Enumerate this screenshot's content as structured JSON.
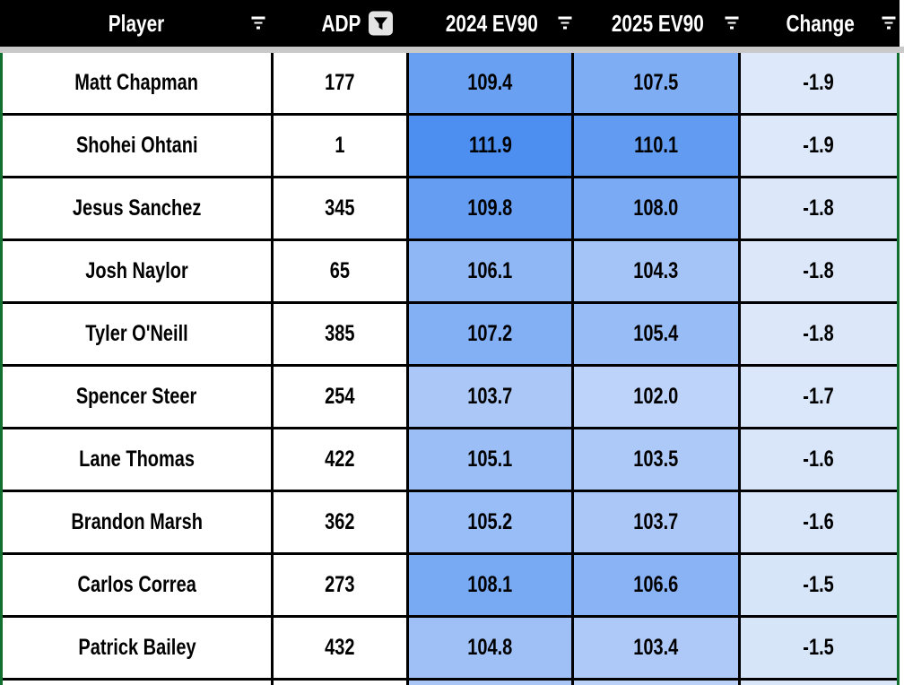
{
  "header": {
    "bg": "#000000",
    "text_color": "#ffffff",
    "columns": [
      {
        "label": "Player",
        "filter_icon": "filter-lines"
      },
      {
        "label": "ADP",
        "filter_icon": "funnel-active"
      },
      {
        "label": "2024 EV90",
        "filter_icon": "filter-lines"
      },
      {
        "label": "2025 EV90",
        "filter_icon": "filter-lines"
      },
      {
        "label": "Change",
        "filter_icon": "filter-lines"
      }
    ]
  },
  "colors": {
    "frozen_border_green": "#11702f",
    "header_shadow_gray": "#c9c9c9",
    "grid_line": "#000000",
    "funnel_button_bg": "#e4e4e4",
    "ev_scale_dark": "#4d8ff0",
    "ev_scale_light": "#bed3f9",
    "change_tint": "#dce8fa"
  },
  "chart_data": {
    "type": "table",
    "title": "",
    "columns": [
      "Player",
      "ADP",
      "2024 EV90",
      "2025 EV90",
      "Change"
    ],
    "rows": [
      {
        "player": "Matt Chapman",
        "adp": "177",
        "ev2024": "109.4",
        "ev2025": "107.5",
        "change": "-1.9",
        "c2024": "#6aa0f2",
        "c2025": "#7fadf4",
        "cchange": "#dde9fa"
      },
      {
        "player": "Shohei Ohtani",
        "adp": "1",
        "ev2024": "111.9",
        "ev2025": "110.1",
        "change": "-1.9",
        "c2024": "#4d8ff0",
        "c2025": "#629bf2",
        "cchange": "#dde9fa"
      },
      {
        "player": "Jesus Sanchez",
        "adp": "345",
        "ev2024": "109.8",
        "ev2025": "108.0",
        "change": "-1.8",
        "c2024": "#659df2",
        "c2025": "#7aaaf4",
        "cchange": "#dce8fa"
      },
      {
        "player": "Josh Naylor",
        "adp": "65",
        "ev2024": "106.1",
        "ev2025": "104.3",
        "change": "-1.8",
        "c2024": "#8fb7f5",
        "c2025": "#a4c3f7",
        "cchange": "#dce8fa"
      },
      {
        "player": "Tyler O'Neill",
        "adp": "385",
        "ev2024": "107.2",
        "ev2025": "105.4",
        "change": "-1.8",
        "c2024": "#83aff4",
        "c2025": "#97bcf6",
        "cchange": "#dce8fa"
      },
      {
        "player": "Spencer Steer",
        "adp": "254",
        "ev2024": "103.7",
        "ev2025": "102.0",
        "change": "-1.7",
        "c2024": "#abc7f7",
        "c2025": "#bed3f9",
        "cchange": "#dae7fa"
      },
      {
        "player": "Lane Thomas",
        "adp": "422",
        "ev2024": "105.1",
        "ev2025": "103.5",
        "change": "-1.6",
        "c2024": "#9bbef6",
        "c2025": "#adc9f8",
        "cchange": "#d9e6f9"
      },
      {
        "player": "Brandon Marsh",
        "adp": "362",
        "ev2024": "105.2",
        "ev2025": "103.7",
        "change": "-1.6",
        "c2024": "#99bdf6",
        "c2025": "#abc7f7",
        "cchange": "#d9e6f9"
      },
      {
        "player": "Carlos Correa",
        "adp": "273",
        "ev2024": "108.1",
        "ev2025": "106.6",
        "change": "-1.5",
        "c2024": "#78a9f3",
        "c2025": "#89b3f5",
        "cchange": "#d7e5f9"
      },
      {
        "player": "Patrick Bailey",
        "adp": "432",
        "ev2024": "104.8",
        "ev2025": "103.4",
        "change": "-1.5",
        "c2024": "#9ec0f6",
        "c2025": "#aec9f8",
        "cchange": "#d7e5f9"
      }
    ],
    "partial_row_colors": [
      "#ffffff",
      "#ffffff",
      "#a9c6f7",
      "#bbd1f8",
      "#d9e6f9"
    ]
  }
}
